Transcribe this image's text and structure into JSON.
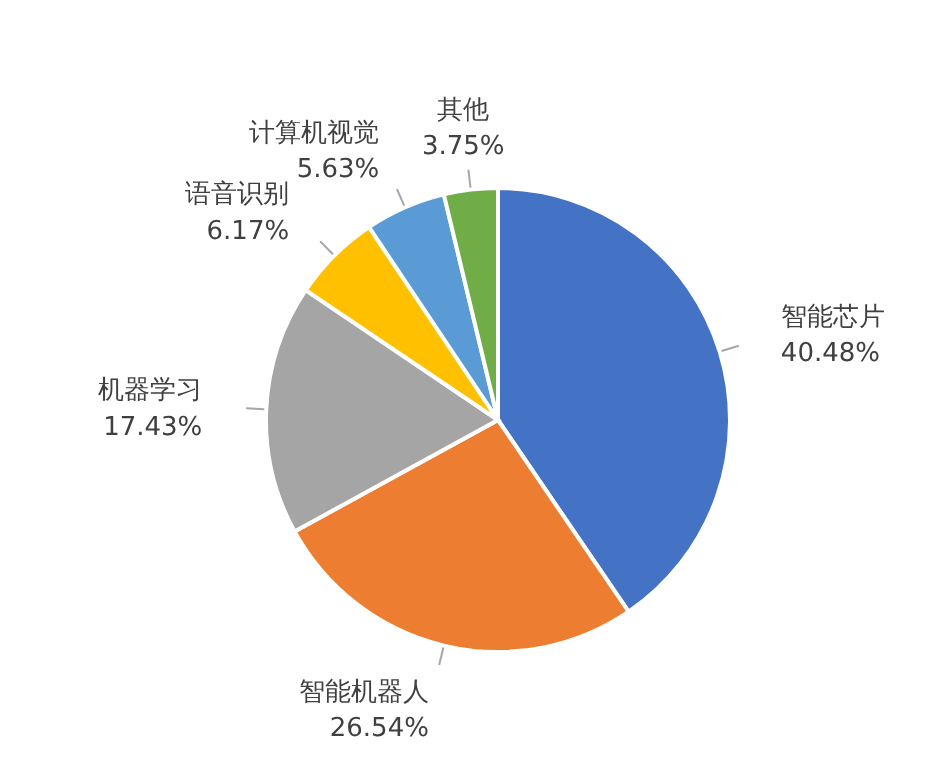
{
  "chart_data": {
    "type": "pie",
    "categories": [
      "智能芯片",
      "智能机器人",
      "机器学习",
      "语音识别",
      "计算机视觉",
      "其他"
    ],
    "values": [
      40.48,
      26.54,
      17.43,
      6.17,
      5.63,
      3.75
    ],
    "value_labels": [
      "40.48%",
      "26.54%",
      "17.43%",
      "6.17%",
      "5.63%",
      "3.75%"
    ],
    "colors": [
      "#4472c4",
      "#ed7d31",
      "#a5a5a5",
      "#ffc000",
      "#5b9bd5",
      "#70ad47"
    ]
  }
}
